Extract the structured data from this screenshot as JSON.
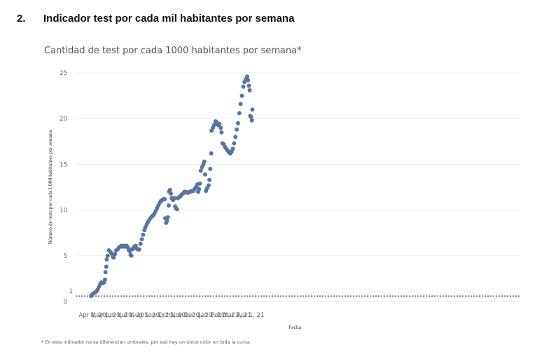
{
  "section": {
    "number": "2.",
    "title": "Indicador test por cada mil habitantes por semana"
  },
  "footnote": "* En este indicador no se diferencian umbrales, por eso hay un único color en toda la curva.",
  "chart_data": {
    "type": "scatter",
    "title": "Cantidad de test por cada 1000 habitantes por semana*",
    "xlabel": "Fecha",
    "ylabel": "Número de tests por cada 1 000 habitantes por semana",
    "ylim": [
      0,
      25
    ],
    "yticks": [
      0,
      5,
      10,
      15,
      20,
      25
    ],
    "xticks": [
      "Apr 1, 20",
      "May 1, 20",
      "Jun 1, 20",
      "Jul 1, 20",
      "Aug 1, 20",
      "Sep 1, 20",
      "Oct 1, 20",
      "Nov 1, 20",
      "Dec 1, 20",
      "Jan 1, 21",
      "Feb 1, 21",
      "Mar 1, 21",
      "Apr 1, 21"
    ],
    "xtick_days": [
      0,
      30,
      61,
      91,
      122,
      153,
      183,
      214,
      244,
      275,
      306,
      334,
      365
    ],
    "reference_line": {
      "value": 0.6,
      "label": "1"
    },
    "marker_color": "#5874a0",
    "series_day_value": [
      [
        -3,
        0.6
      ],
      [
        0,
        0.8
      ],
      [
        3,
        0.9
      ],
      [
        6,
        1.0
      ],
      [
        9,
        1.1
      ],
      [
        12,
        1.3
      ],
      [
        15,
        1.6
      ],
      [
        18,
        1.9
      ],
      [
        21,
        2.1
      ],
      [
        24,
        2.0
      ],
      [
        27,
        2.1
      ],
      [
        29,
        2.4
      ],
      [
        30,
        3.2
      ],
      [
        32,
        3.8
      ],
      [
        33,
        4.6
      ],
      [
        35,
        5.0
      ],
      [
        38,
        5.6
      ],
      [
        42,
        5.4
      ],
      [
        45,
        5.2
      ],
      [
        47,
        4.9
      ],
      [
        49,
        4.8
      ],
      [
        52,
        5.2
      ],
      [
        55,
        5.6
      ],
      [
        58,
        5.7
      ],
      [
        61,
        5.9
      ],
      [
        64,
        6.0
      ],
      [
        67,
        6.1
      ],
      [
        70,
        6.0
      ],
      [
        73,
        6.1
      ],
      [
        76,
        6.0
      ],
      [
        79,
        6.1
      ],
      [
        82,
        5.9
      ],
      [
        84,
        5.6
      ],
      [
        86,
        5.5
      ],
      [
        88,
        5.1
      ],
      [
        90,
        5.0
      ],
      [
        91,
        5.7
      ],
      [
        94,
        5.8
      ],
      [
        97,
        6.0
      ],
      [
        100,
        6.1
      ],
      [
        102,
        5.8
      ],
      [
        105,
        5.7
      ],
      [
        108,
        5.7
      ],
      [
        111,
        6.3
      ],
      [
        114,
        6.8
      ],
      [
        117,
        7.3
      ],
      [
        120,
        7.8
      ],
      [
        122,
        8.1
      ],
      [
        125,
        8.4
      ],
      [
        128,
        8.7
      ],
      [
        131,
        8.9
      ],
      [
        134,
        9.1
      ],
      [
        137,
        9.3
      ],
      [
        140,
        9.4
      ],
      [
        143,
        9.6
      ],
      [
        146,
        9.9
      ],
      [
        149,
        10.2
      ],
      [
        152,
        10.5
      ],
      [
        155,
        10.8
      ],
      [
        158,
        11.0
      ],
      [
        161,
        11.1
      ],
      [
        164,
        11.2
      ],
      [
        167,
        11.2
      ],
      [
        168,
        9.1
      ],
      [
        170,
        8.6
      ],
      [
        172,
        8.8
      ],
      [
        174,
        9.2
      ],
      [
        176,
        10.5
      ],
      [
        177,
        12.0
      ],
      [
        179,
        12.2
      ],
      [
        181,
        11.8
      ],
      [
        183,
        11.3
      ],
      [
        186,
        11.1
      ],
      [
        189,
        11.3
      ],
      [
        191,
        10.4
      ],
      [
        193,
        10.2
      ],
      [
        195,
        10.1
      ],
      [
        197,
        11.3
      ],
      [
        200,
        11.4
      ],
      [
        203,
        11.5
      ],
      [
        206,
        11.7
      ],
      [
        209,
        11.8
      ],
      [
        212,
        12.0
      ],
      [
        215,
        12.0
      ],
      [
        218,
        11.9
      ],
      [
        221,
        11.9
      ],
      [
        224,
        12.0
      ],
      [
        227,
        12.0
      ],
      [
        230,
        12.1
      ],
      [
        233,
        12.1
      ],
      [
        236,
        12.3
      ],
      [
        239,
        12.5
      ],
      [
        242,
        12.8
      ],
      [
        244,
        12.0
      ],
      [
        246,
        12.3
      ],
      [
        248,
        12.9
      ],
      [
        250,
        14.3
      ],
      [
        253,
        14.7
      ],
      [
        256,
        15.0
      ],
      [
        258,
        15.3
      ],
      [
        260,
        13.9
      ],
      [
        262,
        12.1
      ],
      [
        265,
        12.4
      ],
      [
        268,
        12.7
      ],
      [
        270,
        13.3
      ],
      [
        272,
        14.5
      ],
      [
        274,
        16.2
      ],
      [
        275,
        18.7
      ],
      [
        278,
        19.0
      ],
      [
        281,
        19.3
      ],
      [
        284,
        19.7
      ],
      [
        287,
        19.6
      ],
      [
        290,
        19.3
      ],
      [
        293,
        19.4
      ],
      [
        296,
        19.0
      ],
      [
        298,
        18.5
      ],
      [
        300,
        17.3
      ],
      [
        303,
        17.2
      ],
      [
        306,
        16.9
      ],
      [
        309,
        16.7
      ],
      [
        312,
        16.5
      ],
      [
        315,
        16.3
      ],
      [
        318,
        16.2
      ],
      [
        321,
        16.4
      ],
      [
        324,
        16.7
      ],
      [
        327,
        17.3
      ],
      [
        330,
        18.0
      ],
      [
        333,
        18.8
      ],
      [
        336,
        19.5
      ],
      [
        339,
        20.6
      ],
      [
        342,
        21.6
      ],
      [
        345,
        22.5
      ],
      [
        348,
        23.5
      ],
      [
        351,
        24.0
      ],
      [
        354,
        24.3
      ],
      [
        357,
        24.6
      ],
      [
        359,
        24.2
      ],
      [
        361,
        23.6
      ],
      [
        363,
        23.1
      ],
      [
        364,
        20.3
      ],
      [
        366,
        20.2
      ],
      [
        368,
        19.8
      ],
      [
        369,
        21.0
      ]
    ]
  }
}
